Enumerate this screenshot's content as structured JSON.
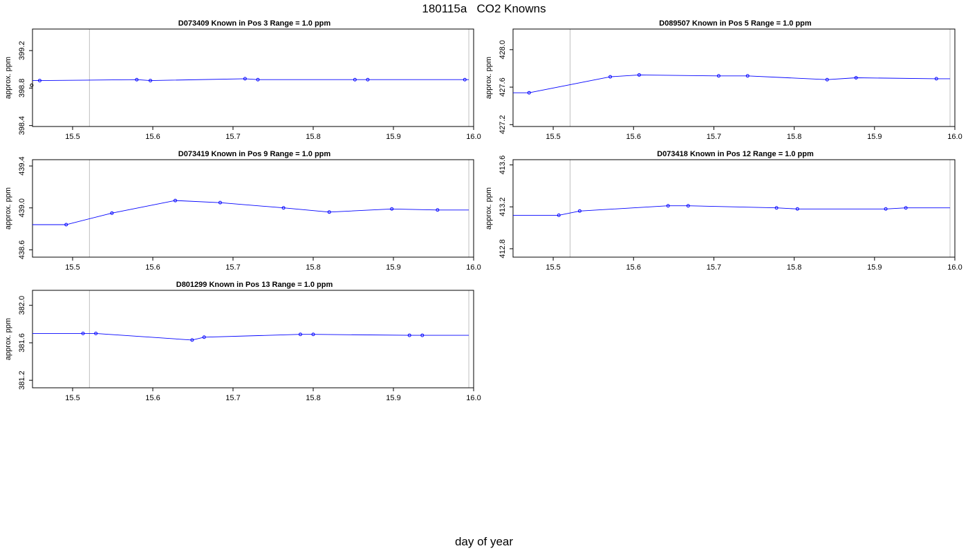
{
  "title": "180115a   CO2 Knowns",
  "xlabel": "day of year",
  "colors": {
    "series": "#0000ff",
    "outlier": "#000000",
    "vline": "#bfbfbf",
    "frame": "#000000"
  },
  "chart_data": [
    {
      "type": "line",
      "title": "D073409    Known in Pos 3         Range = 1.0 ppm",
      "ylabel": "approx. ppm",
      "xlim": [
        15.45,
        16.0
      ],
      "xticks": [
        "15.5",
        "15.6",
        "15.7",
        "15.8",
        "15.9",
        "16.0"
      ],
      "ylim": [
        398.39,
        399.43
      ],
      "yticks": [
        "398.4",
        "398.8",
        "399.2"
      ],
      "vlines": [
        15.521,
        15.994
      ],
      "x": [
        15.459,
        15.58,
        15.597,
        15.715,
        15.731,
        15.852,
        15.868,
        15.989
      ],
      "y": [
        398.88,
        398.89,
        398.88,
        398.9,
        398.89,
        398.89,
        398.89,
        398.89
      ],
      "line_extend": [
        15.45,
        15.994
      ],
      "outliers": [
        {
          "x": 15.449,
          "y": 398.83
        }
      ]
    },
    {
      "type": "line",
      "title": "D089507    Known in Pos 5         Range = 1.0 ppm",
      "ylabel": "approx. ppm",
      "xlim": [
        15.45,
        16.0
      ],
      "xticks": [
        "15.5",
        "15.6",
        "15.7",
        "15.8",
        "15.9",
        "16.0"
      ],
      "ylim": [
        427.18,
        428.22
      ],
      "yticks": [
        "427.2",
        "427.6",
        "428.0"
      ],
      "vlines": [
        15.521,
        15.994
      ],
      "x": [
        15.47,
        15.571,
        15.607,
        15.706,
        15.742,
        15.841,
        15.877,
        15.977
      ],
      "y": [
        427.54,
        427.71,
        427.73,
        427.72,
        427.72,
        427.68,
        427.7,
        427.69
      ],
      "line_extend": [
        15.45,
        15.994
      ],
      "outliers": []
    },
    {
      "type": "line",
      "title": "D073419    Known in Pos 9         Range = 1.0 ppm",
      "ylabel": "approx. ppm",
      "xlim": [
        15.45,
        16.0
      ],
      "xticks": [
        "15.5",
        "15.6",
        "15.7",
        "15.8",
        "15.9",
        "16.0"
      ],
      "ylim": [
        438.53,
        439.46
      ],
      "yticks": [
        "438.6",
        "439.0",
        "439.4"
      ],
      "vlines": [
        15.521,
        15.994
      ],
      "x": [
        15.492,
        15.549,
        15.628,
        15.684,
        15.763,
        15.82,
        15.898,
        15.955
      ],
      "y": [
        438.84,
        438.95,
        439.07,
        439.05,
        439.0,
        438.96,
        438.99,
        438.98
      ],
      "line_extend": [
        15.45,
        15.994
      ],
      "outliers": []
    },
    {
      "type": "line",
      "title": "D073418    Known in Pos 12         Range = 1.0 ppm",
      "ylabel": "approx. ppm",
      "xlim": [
        15.45,
        16.0
      ],
      "xticks": [
        "15.5",
        "15.6",
        "15.7",
        "15.8",
        "15.9",
        "16.0"
      ],
      "ylim": [
        412.72,
        413.65
      ],
      "yticks": [
        "412.8",
        "413.2",
        "413.6"
      ],
      "vlines": [
        15.521,
        15.994
      ],
      "x": [
        15.507,
        15.533,
        15.643,
        15.668,
        15.778,
        15.804,
        15.914,
        15.939
      ],
      "y": [
        413.12,
        413.16,
        413.21,
        413.21,
        413.19,
        413.18,
        413.18,
        413.19
      ],
      "line_extend": [
        15.45,
        15.994
      ],
      "outliers": []
    },
    {
      "type": "line",
      "title": "D801299    Known in Pos 13         Range = 1.0 ppm",
      "ylabel": "approx. ppm",
      "xlim": [
        15.45,
        16.0
      ],
      "xticks": [
        "15.5",
        "15.6",
        "15.7",
        "15.8",
        "15.9",
        "16.0"
      ],
      "ylim": [
        381.12,
        382.16
      ],
      "yticks": [
        "381.2",
        "381.6",
        "382.0"
      ],
      "vlines": [
        15.521,
        15.994
      ],
      "x": [
        15.513,
        15.529,
        15.649,
        15.664,
        15.784,
        15.8,
        15.92,
        15.936
      ],
      "y": [
        381.7,
        381.7,
        381.63,
        381.66,
        381.69,
        381.69,
        381.68,
        381.68
      ],
      "line_extend": [
        15.45,
        15.994
      ],
      "outliers": []
    }
  ]
}
